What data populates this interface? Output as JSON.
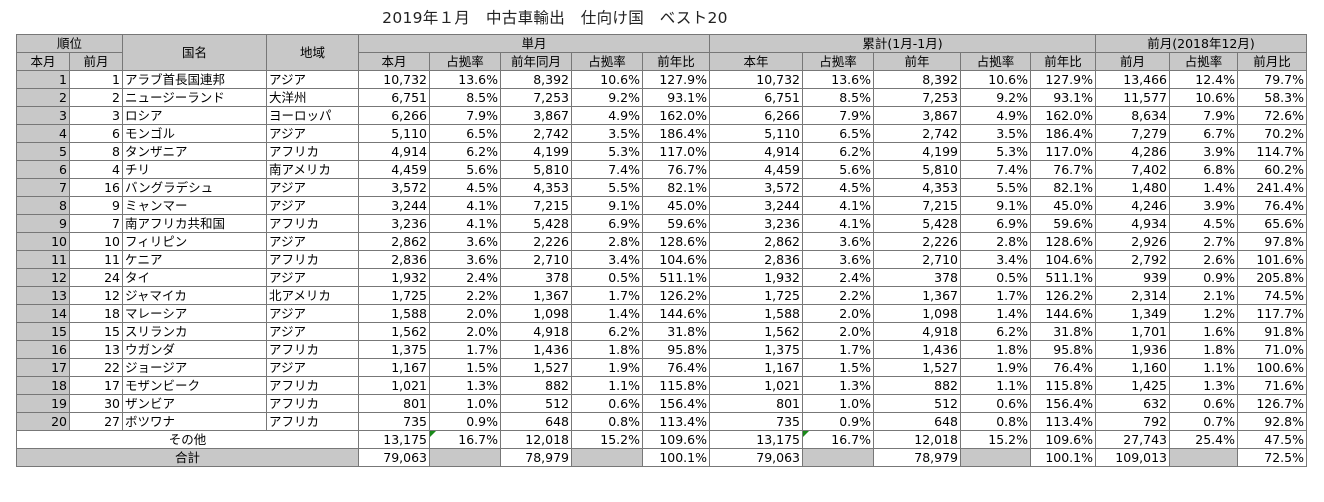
{
  "title": "2019年１月　中古車輸出　仕向け国　ベスト20",
  "headers": {
    "rank": "順位",
    "this_month": "本月",
    "prev_month": "前月",
    "country": "国名",
    "region": "地域",
    "single_month": "単月",
    "cumulative": "累計(1月-1月)",
    "previous_month_group": "前月(2018年12月)",
    "sub": {
      "s_current": "本月",
      "s_share": "占拠率",
      "s_prev_year": "前年同月",
      "s_share2": "占拠率",
      "s_yoy": "前年比",
      "c_current": "本年",
      "c_share": "占拠率",
      "c_prev": "前年",
      "c_share2": "占拠率",
      "c_yoy": "前年比",
      "p_prev": "前月",
      "p_share": "占拠率",
      "p_mom": "前月比"
    }
  },
  "rows": [
    {
      "rank": "1",
      "prev": "1",
      "country": "アラブ首長国連邦",
      "region": "アジア",
      "s_cur": "10,732",
      "s_sh": "13.6%",
      "s_py": "8,392",
      "s_sh2": "10.6%",
      "s_yoy": "127.9%",
      "c_cur": "10,732",
      "c_sh": "13.6%",
      "c_py": "8,392",
      "c_sh2": "10.6%",
      "c_yoy": "127.9%",
      "p_prev": "13,466",
      "p_sh": "12.4%",
      "p_mom": "79.7%"
    },
    {
      "rank": "2",
      "prev": "2",
      "country": "ニュージーランド",
      "region": "大洋州",
      "s_cur": "6,751",
      "s_sh": "8.5%",
      "s_py": "7,253",
      "s_sh2": "9.2%",
      "s_yoy": "93.1%",
      "c_cur": "6,751",
      "c_sh": "8.5%",
      "c_py": "7,253",
      "c_sh2": "9.2%",
      "c_yoy": "93.1%",
      "p_prev": "11,577",
      "p_sh": "10.6%",
      "p_mom": "58.3%"
    },
    {
      "rank": "3",
      "prev": "3",
      "country": "ロシア",
      "region": "ヨーロッパ",
      "s_cur": "6,266",
      "s_sh": "7.9%",
      "s_py": "3,867",
      "s_sh2": "4.9%",
      "s_yoy": "162.0%",
      "c_cur": "6,266",
      "c_sh": "7.9%",
      "c_py": "3,867",
      "c_sh2": "4.9%",
      "c_yoy": "162.0%",
      "p_prev": "8,634",
      "p_sh": "7.9%",
      "p_mom": "72.6%"
    },
    {
      "rank": "4",
      "prev": "6",
      "country": "モンゴル",
      "region": "アジア",
      "s_cur": "5,110",
      "s_sh": "6.5%",
      "s_py": "2,742",
      "s_sh2": "3.5%",
      "s_yoy": "186.4%",
      "c_cur": "5,110",
      "c_sh": "6.5%",
      "c_py": "2,742",
      "c_sh2": "3.5%",
      "c_yoy": "186.4%",
      "p_prev": "7,279",
      "p_sh": "6.7%",
      "p_mom": "70.2%"
    },
    {
      "rank": "5",
      "prev": "8",
      "country": "タンザニア",
      "region": "アフリカ",
      "s_cur": "4,914",
      "s_sh": "6.2%",
      "s_py": "4,199",
      "s_sh2": "5.3%",
      "s_yoy": "117.0%",
      "c_cur": "4,914",
      "c_sh": "6.2%",
      "c_py": "4,199",
      "c_sh2": "5.3%",
      "c_yoy": "117.0%",
      "p_prev": "4,286",
      "p_sh": "3.9%",
      "p_mom": "114.7%"
    },
    {
      "rank": "6",
      "prev": "4",
      "country": "チリ",
      "region": "南アメリカ",
      "s_cur": "4,459",
      "s_sh": "5.6%",
      "s_py": "5,810",
      "s_sh2": "7.4%",
      "s_yoy": "76.7%",
      "c_cur": "4,459",
      "c_sh": "5.6%",
      "c_py": "5,810",
      "c_sh2": "7.4%",
      "c_yoy": "76.7%",
      "p_prev": "7,402",
      "p_sh": "6.8%",
      "p_mom": "60.2%"
    },
    {
      "rank": "7",
      "prev": "16",
      "country": "バングラデシュ",
      "region": "アジア",
      "s_cur": "3,572",
      "s_sh": "4.5%",
      "s_py": "4,353",
      "s_sh2": "5.5%",
      "s_yoy": "82.1%",
      "c_cur": "3,572",
      "c_sh": "4.5%",
      "c_py": "4,353",
      "c_sh2": "5.5%",
      "c_yoy": "82.1%",
      "p_prev": "1,480",
      "p_sh": "1.4%",
      "p_mom": "241.4%"
    },
    {
      "rank": "8",
      "prev": "9",
      "country": "ミャンマー",
      "region": "アジア",
      "s_cur": "3,244",
      "s_sh": "4.1%",
      "s_py": "7,215",
      "s_sh2": "9.1%",
      "s_yoy": "45.0%",
      "c_cur": "3,244",
      "c_sh": "4.1%",
      "c_py": "7,215",
      "c_sh2": "9.1%",
      "c_yoy": "45.0%",
      "p_prev": "4,246",
      "p_sh": "3.9%",
      "p_mom": "76.4%"
    },
    {
      "rank": "9",
      "prev": "7",
      "country": "南アフリカ共和国",
      "region": "アフリカ",
      "s_cur": "3,236",
      "s_sh": "4.1%",
      "s_py": "5,428",
      "s_sh2": "6.9%",
      "s_yoy": "59.6%",
      "c_cur": "3,236",
      "c_sh": "4.1%",
      "c_py": "5,428",
      "c_sh2": "6.9%",
      "c_yoy": "59.6%",
      "p_prev": "4,934",
      "p_sh": "4.5%",
      "p_mom": "65.6%"
    },
    {
      "rank": "10",
      "prev": "10",
      "country": "フィリピン",
      "region": "アジア",
      "s_cur": "2,862",
      "s_sh": "3.6%",
      "s_py": "2,226",
      "s_sh2": "2.8%",
      "s_yoy": "128.6%",
      "c_cur": "2,862",
      "c_sh": "3.6%",
      "c_py": "2,226",
      "c_sh2": "2.8%",
      "c_yoy": "128.6%",
      "p_prev": "2,926",
      "p_sh": "2.7%",
      "p_mom": "97.8%"
    },
    {
      "rank": "11",
      "prev": "11",
      "country": "ケニア",
      "region": "アフリカ",
      "s_cur": "2,836",
      "s_sh": "3.6%",
      "s_py": "2,710",
      "s_sh2": "3.4%",
      "s_yoy": "104.6%",
      "c_cur": "2,836",
      "c_sh": "3.6%",
      "c_py": "2,710",
      "c_sh2": "3.4%",
      "c_yoy": "104.6%",
      "p_prev": "2,792",
      "p_sh": "2.6%",
      "p_mom": "101.6%"
    },
    {
      "rank": "12",
      "prev": "24",
      "country": "タイ",
      "region": "アジア",
      "s_cur": "1,932",
      "s_sh": "2.4%",
      "s_py": "378",
      "s_sh2": "0.5%",
      "s_yoy": "511.1%",
      "c_cur": "1,932",
      "c_sh": "2.4%",
      "c_py": "378",
      "c_sh2": "0.5%",
      "c_yoy": "511.1%",
      "p_prev": "939",
      "p_sh": "0.9%",
      "p_mom": "205.8%"
    },
    {
      "rank": "13",
      "prev": "12",
      "country": "ジャマイカ",
      "region": "北アメリカ",
      "s_cur": "1,725",
      "s_sh": "2.2%",
      "s_py": "1,367",
      "s_sh2": "1.7%",
      "s_yoy": "126.2%",
      "c_cur": "1,725",
      "c_sh": "2.2%",
      "c_py": "1,367",
      "c_sh2": "1.7%",
      "c_yoy": "126.2%",
      "p_prev": "2,314",
      "p_sh": "2.1%",
      "p_mom": "74.5%"
    },
    {
      "rank": "14",
      "prev": "18",
      "country": "マレーシア",
      "region": "アジア",
      "s_cur": "1,588",
      "s_sh": "2.0%",
      "s_py": "1,098",
      "s_sh2": "1.4%",
      "s_yoy": "144.6%",
      "c_cur": "1,588",
      "c_sh": "2.0%",
      "c_py": "1,098",
      "c_sh2": "1.4%",
      "c_yoy": "144.6%",
      "p_prev": "1,349",
      "p_sh": "1.2%",
      "p_mom": "117.7%"
    },
    {
      "rank": "15",
      "prev": "15",
      "country": "スリランカ",
      "region": "アジア",
      "s_cur": "1,562",
      "s_sh": "2.0%",
      "s_py": "4,918",
      "s_sh2": "6.2%",
      "s_yoy": "31.8%",
      "c_cur": "1,562",
      "c_sh": "2.0%",
      "c_py": "4,918",
      "c_sh2": "6.2%",
      "c_yoy": "31.8%",
      "p_prev": "1,701",
      "p_sh": "1.6%",
      "p_mom": "91.8%"
    },
    {
      "rank": "16",
      "prev": "13",
      "country": "ウガンダ",
      "region": "アフリカ",
      "s_cur": "1,375",
      "s_sh": "1.7%",
      "s_py": "1,436",
      "s_sh2": "1.8%",
      "s_yoy": "95.8%",
      "c_cur": "1,375",
      "c_sh": "1.7%",
      "c_py": "1,436",
      "c_sh2": "1.8%",
      "c_yoy": "95.8%",
      "p_prev": "1,936",
      "p_sh": "1.8%",
      "p_mom": "71.0%"
    },
    {
      "rank": "17",
      "prev": "22",
      "country": "ジョージア",
      "region": "アジア",
      "s_cur": "1,167",
      "s_sh": "1.5%",
      "s_py": "1,527",
      "s_sh2": "1.9%",
      "s_yoy": "76.4%",
      "c_cur": "1,167",
      "c_sh": "1.5%",
      "c_py": "1,527",
      "c_sh2": "1.9%",
      "c_yoy": "76.4%",
      "p_prev": "1,160",
      "p_sh": "1.1%",
      "p_mom": "100.6%"
    },
    {
      "rank": "18",
      "prev": "17",
      "country": "モザンビーク",
      "region": "アフリカ",
      "s_cur": "1,021",
      "s_sh": "1.3%",
      "s_py": "882",
      "s_sh2": "1.1%",
      "s_yoy": "115.8%",
      "c_cur": "1,021",
      "c_sh": "1.3%",
      "c_py": "882",
      "c_sh2": "1.1%",
      "c_yoy": "115.8%",
      "p_prev": "1,425",
      "p_sh": "1.3%",
      "p_mom": "71.6%"
    },
    {
      "rank": "19",
      "prev": "30",
      "country": "ザンビア",
      "region": "アフリカ",
      "s_cur": "801",
      "s_sh": "1.0%",
      "s_py": "512",
      "s_sh2": "0.6%",
      "s_yoy": "156.4%",
      "c_cur": "801",
      "c_sh": "1.0%",
      "c_py": "512",
      "c_sh2": "0.6%",
      "c_yoy": "156.4%",
      "p_prev": "632",
      "p_sh": "0.6%",
      "p_mom": "126.7%"
    },
    {
      "rank": "20",
      "prev": "27",
      "country": "ボツワナ",
      "region": "アフリカ",
      "s_cur": "735",
      "s_sh": "0.9%",
      "s_py": "648",
      "s_sh2": "0.8%",
      "s_yoy": "113.4%",
      "c_cur": "735",
      "c_sh": "0.9%",
      "c_py": "648",
      "c_sh2": "0.8%",
      "c_yoy": "113.4%",
      "p_prev": "792",
      "p_sh": "0.7%",
      "p_mom": "92.8%"
    }
  ],
  "other": {
    "label": "その他",
    "s_cur": "13,175",
    "s_sh": "16.7%",
    "s_py": "12,018",
    "s_sh2": "15.2%",
    "s_yoy": "109.6%",
    "c_cur": "13,175",
    "c_sh": "16.7%",
    "c_py": "12,018",
    "c_sh2": "15.2%",
    "c_yoy": "109.6%",
    "p_prev": "27,743",
    "p_sh": "25.4%",
    "p_mom": "47.5%"
  },
  "total": {
    "label": "合計",
    "s_cur": "79,063",
    "s_py": "78,979",
    "s_yoy": "100.1%",
    "c_cur": "79,063",
    "c_py": "78,979",
    "c_yoy": "100.1%",
    "p_prev": "109,013",
    "p_mom": "72.5%"
  }
}
